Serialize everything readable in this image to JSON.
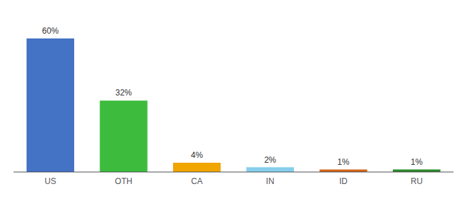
{
  "chart_data": {
    "type": "bar",
    "categories": [
      "US",
      "OTH",
      "CA",
      "IN",
      "ID",
      "RU"
    ],
    "values": [
      60,
      32,
      4,
      2,
      1,
      1
    ],
    "value_labels": [
      "60%",
      "32%",
      "4%",
      "2%",
      "1%",
      "1%"
    ],
    "colors": [
      "#4472c4",
      "#3dbb3d",
      "#f0a500",
      "#87ceeb",
      "#d2691e",
      "#2d8a2d"
    ],
    "ylim": [
      0,
      68
    ],
    "grid": false,
    "data_labels": true,
    "tick_labels": "x"
  }
}
